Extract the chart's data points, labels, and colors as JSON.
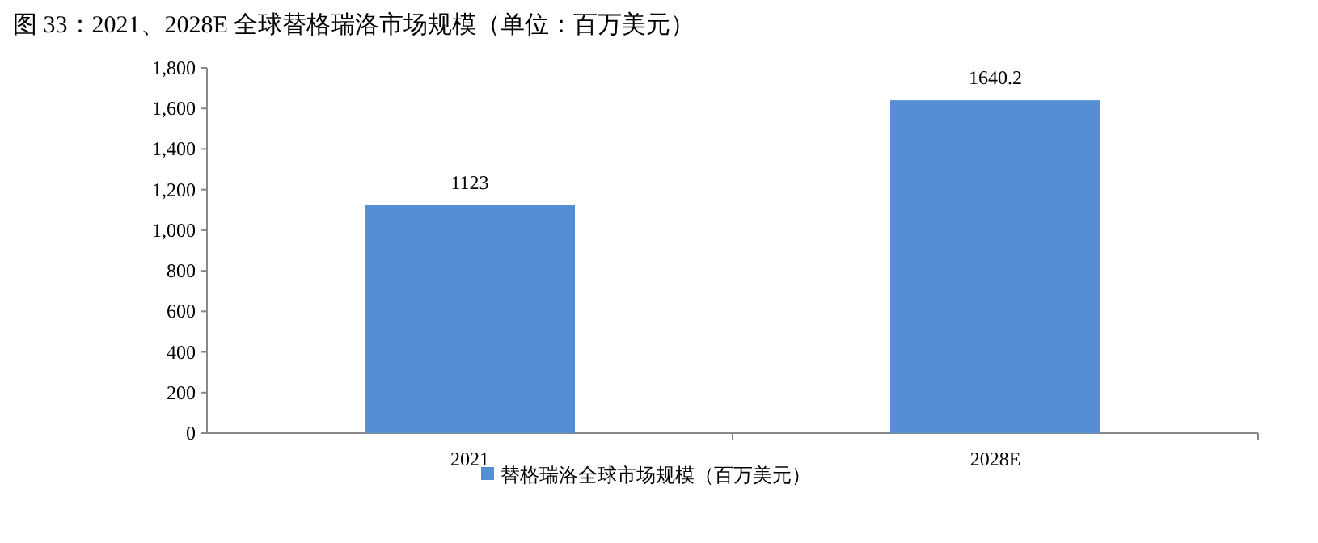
{
  "chart_data": {
    "type": "bar",
    "title": "图 33：2021、2028E 全球替格瑞洛市场规模（单位：百万美元）",
    "categories": [
      "2021",
      "2028E"
    ],
    "series": [
      {
        "name": "替格瑞洛全球市场规模（百万美元）",
        "color": "#558ed5",
        "values": [
          1123,
          1640.2
        ]
      }
    ],
    "ylim": [
      0,
      1800
    ],
    "yticks": [
      0,
      {
        "value": 200,
        "label": "200"
      },
      {
        "value": 400,
        "label": "400"
      },
      {
        "value": 600,
        "label": "600"
      },
      {
        "value": 800,
        "label": "800"
      },
      {
        "value": 1000,
        "label": "1,000"
      },
      {
        "value": 1200,
        "label": "1,200"
      },
      {
        "value": 1400,
        "label": "1,400"
      },
      {
        "value": 1600,
        "label": "1,600"
      },
      {
        "value": 1800,
        "label": "1,800"
      }
    ],
    "data_labels": true,
    "grid": false,
    "legend": "bottom"
  }
}
